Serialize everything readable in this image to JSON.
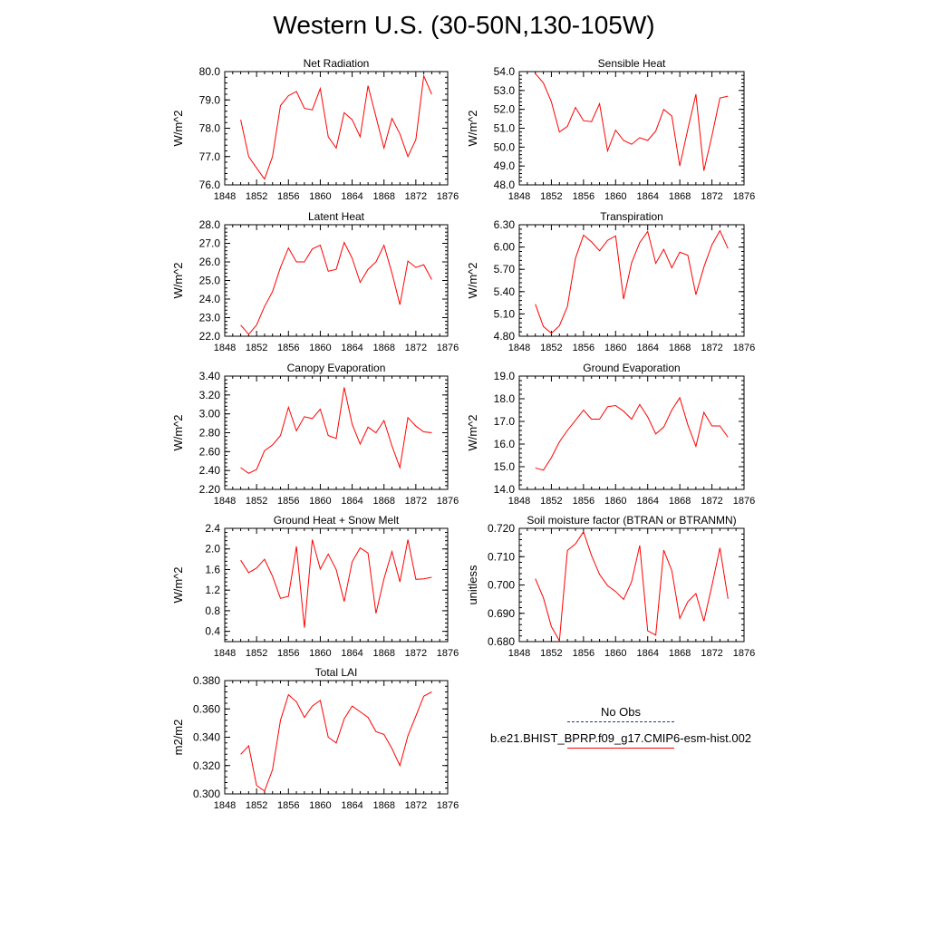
{
  "title": "Western U.S. (30-50N,130-105W)",
  "colors": {
    "model_line": "#ff0000",
    "obs_line": "#1f3a93",
    "axis": "#000000"
  },
  "legend": {
    "obs_label": "No Obs",
    "model_label": "b.e21.BHIST_BPRP.f09_g17.CMIP6-esm-hist.002"
  },
  "chart_data": [
    {
      "type": "line",
      "title": "Net Radiation",
      "xlabel": "",
      "ylabel": "W/m^2",
      "xlim": [
        1848,
        1876
      ],
      "ylim": [
        76.0,
        80.0
      ],
      "xticks": [
        "1848",
        "1852",
        "1856",
        "1860",
        "1864",
        "1868",
        "1872",
        "1876"
      ],
      "yticks": [
        "76.0",
        "77.0",
        "78.0",
        "79.0",
        "80.0"
      ],
      "grid": false,
      "x": [
        1850,
        1851,
        1852,
        1853,
        1854,
        1855,
        1856,
        1857,
        1858,
        1859,
        1860,
        1861,
        1862,
        1863,
        1864,
        1865,
        1866,
        1867,
        1868,
        1869,
        1870,
        1871,
        1872,
        1873,
        1874
      ],
      "series": [
        {
          "values": [
            78.3,
            77.0,
            76.6,
            76.2,
            77.0,
            78.8,
            79.15,
            79.3,
            78.7,
            78.65,
            79.4,
            77.7,
            77.3,
            78.55,
            78.3,
            77.7,
            79.5,
            78.4,
            77.3,
            78.35,
            77.8,
            77.0,
            77.6,
            79.85,
            79.2
          ]
        }
      ]
    },
    {
      "type": "line",
      "title": "Sensible Heat",
      "xlabel": "",
      "ylabel": "W/m^2",
      "xlim": [
        1848,
        1876
      ],
      "ylim": [
        48.0,
        54.0
      ],
      "xticks": [
        "1848",
        "1852",
        "1856",
        "1860",
        "1864",
        "1868",
        "1872",
        "1876"
      ],
      "yticks": [
        "48.0",
        "49.0",
        "50.0",
        "51.0",
        "52.0",
        "53.0",
        "54.0"
      ],
      "grid": false,
      "x": [
        1850,
        1851,
        1852,
        1853,
        1854,
        1855,
        1856,
        1857,
        1858,
        1859,
        1860,
        1861,
        1862,
        1863,
        1864,
        1865,
        1866,
        1867,
        1868,
        1869,
        1870,
        1871,
        1872,
        1873,
        1874
      ],
      "series": [
        {
          "values": [
            53.9,
            53.4,
            52.4,
            50.8,
            51.1,
            52.1,
            51.4,
            51.35,
            52.3,
            49.8,
            50.9,
            50.35,
            50.15,
            50.5,
            50.35,
            50.85,
            52.0,
            51.65,
            49.0,
            50.95,
            52.8,
            48.75,
            50.6,
            52.6,
            52.7
          ]
        }
      ]
    },
    {
      "type": "line",
      "title": "Latent Heat",
      "xlabel": "",
      "ylabel": "W/m^2",
      "xlim": [
        1848,
        1876
      ],
      "ylim": [
        22.0,
        28.0
      ],
      "xticks": [
        "1848",
        "1852",
        "1856",
        "1860",
        "1864",
        "1868",
        "1872",
        "1876"
      ],
      "yticks": [
        "22.0",
        "23.0",
        "24.0",
        "25.0",
        "26.0",
        "27.0",
        "28.0"
      ],
      "grid": false,
      "x": [
        1850,
        1851,
        1852,
        1853,
        1854,
        1855,
        1856,
        1857,
        1858,
        1859,
        1860,
        1861,
        1862,
        1863,
        1864,
        1865,
        1866,
        1867,
        1868,
        1869,
        1870,
        1871,
        1872,
        1873,
        1874
      ],
      "series": [
        {
          "values": [
            22.6,
            22.1,
            22.6,
            23.6,
            24.4,
            25.7,
            26.75,
            26.0,
            26.0,
            26.7,
            26.9,
            25.5,
            25.6,
            27.05,
            26.2,
            24.9,
            25.6,
            26.0,
            26.9,
            25.4,
            23.7,
            26.05,
            25.7,
            25.85,
            25.05
          ]
        }
      ]
    },
    {
      "type": "line",
      "title": "Transpiration",
      "xlabel": "",
      "ylabel": "W/m^2",
      "xlim": [
        1848,
        1876
      ],
      "ylim": [
        4.8,
        6.3
      ],
      "xticks": [
        "1848",
        "1852",
        "1856",
        "1860",
        "1864",
        "1868",
        "1872",
        "1876"
      ],
      "yticks": [
        "4.80",
        "5.10",
        "5.40",
        "5.70",
        "6.00",
        "6.30"
      ],
      "grid": false,
      "x": [
        1850,
        1851,
        1852,
        1853,
        1854,
        1855,
        1856,
        1857,
        1858,
        1859,
        1860,
        1861,
        1862,
        1863,
        1864,
        1865,
        1866,
        1867,
        1868,
        1869,
        1870,
        1871,
        1872,
        1873,
        1874
      ],
      "series": [
        {
          "values": [
            5.23,
            4.93,
            4.84,
            4.94,
            5.2,
            5.85,
            6.16,
            6.07,
            5.95,
            6.09,
            6.15,
            5.3,
            5.79,
            6.06,
            6.21,
            5.78,
            5.97,
            5.72,
            5.93,
            5.89,
            5.36,
            5.73,
            6.03,
            6.22,
            5.98
          ]
        }
      ]
    },
    {
      "type": "line",
      "title": "Canopy Evaporation",
      "xlabel": "",
      "ylabel": "W/m^2",
      "xlim": [
        1848,
        1876
      ],
      "ylim": [
        2.2,
        3.4
      ],
      "xticks": [
        "1848",
        "1852",
        "1856",
        "1860",
        "1864",
        "1868",
        "1872",
        "1876"
      ],
      "yticks": [
        "2.20",
        "2.40",
        "2.60",
        "2.80",
        "3.00",
        "3.20",
        "3.40"
      ],
      "grid": false,
      "x": [
        1850,
        1851,
        1852,
        1853,
        1854,
        1855,
        1856,
        1857,
        1858,
        1859,
        1860,
        1861,
        1862,
        1863,
        1864,
        1865,
        1866,
        1867,
        1868,
        1869,
        1870,
        1871,
        1872,
        1873,
        1874
      ],
      "series": [
        {
          "values": [
            2.43,
            2.37,
            2.41,
            2.61,
            2.67,
            2.77,
            3.07,
            2.82,
            2.97,
            2.95,
            3.05,
            2.77,
            2.74,
            3.28,
            2.89,
            2.68,
            2.86,
            2.8,
            2.93,
            2.66,
            2.43,
            2.96,
            2.87,
            2.81,
            2.8
          ]
        }
      ]
    },
    {
      "type": "line",
      "title": "Ground Evaporation",
      "xlabel": "",
      "ylabel": "W/m^2",
      "xlim": [
        1848,
        1876
      ],
      "ylim": [
        14.0,
        19.0
      ],
      "xticks": [
        "1848",
        "1852",
        "1856",
        "1860",
        "1864",
        "1868",
        "1872",
        "1876"
      ],
      "yticks": [
        "14.0",
        "15.0",
        "16.0",
        "17.0",
        "18.0",
        "19.0"
      ],
      "grid": false,
      "x": [
        1850,
        1851,
        1852,
        1853,
        1854,
        1855,
        1856,
        1857,
        1858,
        1859,
        1860,
        1861,
        1862,
        1863,
        1864,
        1865,
        1866,
        1867,
        1868,
        1869,
        1870,
        1871,
        1872,
        1873,
        1874
      ],
      "series": [
        {
          "values": [
            14.95,
            14.85,
            15.4,
            16.1,
            16.6,
            17.05,
            17.5,
            17.1,
            17.1,
            17.65,
            17.7,
            17.45,
            17.1,
            17.75,
            17.2,
            16.45,
            16.75,
            17.5,
            18.05,
            16.85,
            15.9,
            17.4,
            16.8,
            16.8,
            16.3
          ]
        }
      ]
    },
    {
      "type": "line",
      "title": "Ground Heat + Snow Melt",
      "xlabel": "",
      "ylabel": "W/m^2",
      "xlim": [
        1848,
        1876
      ],
      "ylim": [
        0.2,
        2.4
      ],
      "xticks": [
        "1848",
        "1852",
        "1856",
        "1860",
        "1864",
        "1868",
        "1872",
        "1876"
      ],
      "yticks": [
        "0.4",
        "0.8",
        "1.2",
        "1.6",
        "2.0",
        "2.4"
      ],
      "grid": false,
      "x": [
        1850,
        1851,
        1852,
        1853,
        1854,
        1855,
        1856,
        1857,
        1858,
        1859,
        1860,
        1861,
        1862,
        1863,
        1864,
        1865,
        1866,
        1867,
        1868,
        1869,
        1870,
        1871,
        1872,
        1873,
        1874
      ],
      "series": [
        {
          "values": [
            1.78,
            1.54,
            1.63,
            1.8,
            1.47,
            1.04,
            1.08,
            2.05,
            0.47,
            2.18,
            1.61,
            1.9,
            1.6,
            0.98,
            1.75,
            2.02,
            1.92,
            0.75,
            1.42,
            1.95,
            1.36,
            2.18,
            1.41,
            1.42,
            1.45
          ]
        }
      ]
    },
    {
      "type": "line",
      "title": "Soil moisture factor (BTRAN or BTRANMN)",
      "xlabel": "",
      "ylabel": "unitless",
      "xlim": [
        1848,
        1876
      ],
      "ylim": [
        0.68,
        0.72
      ],
      "xticks": [
        "1848",
        "1852",
        "1856",
        "1860",
        "1864",
        "1868",
        "1872",
        "1876"
      ],
      "yticks": [
        "0.680",
        "0.690",
        "0.700",
        "0.710",
        "0.720"
      ],
      "grid": false,
      "x": [
        1850,
        1851,
        1852,
        1853,
        1854,
        1855,
        1856,
        1857,
        1858,
        1859,
        1860,
        1861,
        1862,
        1863,
        1864,
        1865,
        1866,
        1867,
        1868,
        1869,
        1870,
        1871,
        1872,
        1873,
        1874
      ],
      "series": [
        {
          "values": [
            0.7022,
            0.6955,
            0.6853,
            0.6803,
            0.7122,
            0.7145,
            0.7188,
            0.7104,
            0.7037,
            0.6998,
            0.6977,
            0.6949,
            0.7012,
            0.714,
            0.6838,
            0.6823,
            0.7123,
            0.7051,
            0.6882,
            0.6941,
            0.697,
            0.6872,
            0.6998,
            0.7131,
            0.6951
          ]
        }
      ]
    },
    {
      "type": "line",
      "title": "Total LAI",
      "xlabel": "",
      "ylabel": "m2/m2",
      "xlim": [
        1848,
        1876
      ],
      "ylim": [
        0.3,
        0.38
      ],
      "xticks": [
        "1848",
        "1852",
        "1856",
        "1860",
        "1864",
        "1868",
        "1872",
        "1876"
      ],
      "yticks": [
        "0.300",
        "0.320",
        "0.340",
        "0.360",
        "0.380"
      ],
      "grid": false,
      "x": [
        1850,
        1851,
        1852,
        1853,
        1854,
        1855,
        1856,
        1857,
        1858,
        1859,
        1860,
        1861,
        1862,
        1863,
        1864,
        1865,
        1866,
        1867,
        1868,
        1869,
        1870,
        1871,
        1872,
        1873,
        1874
      ],
      "series": [
        {
          "values": [
            0.328,
            0.334,
            0.306,
            0.302,
            0.317,
            0.352,
            0.37,
            0.365,
            0.354,
            0.362,
            0.366,
            0.34,
            0.336,
            0.353,
            0.362,
            0.358,
            0.354,
            0.344,
            0.342,
            0.332,
            0.32,
            0.341,
            0.355,
            0.369,
            0.372
          ]
        }
      ]
    }
  ]
}
